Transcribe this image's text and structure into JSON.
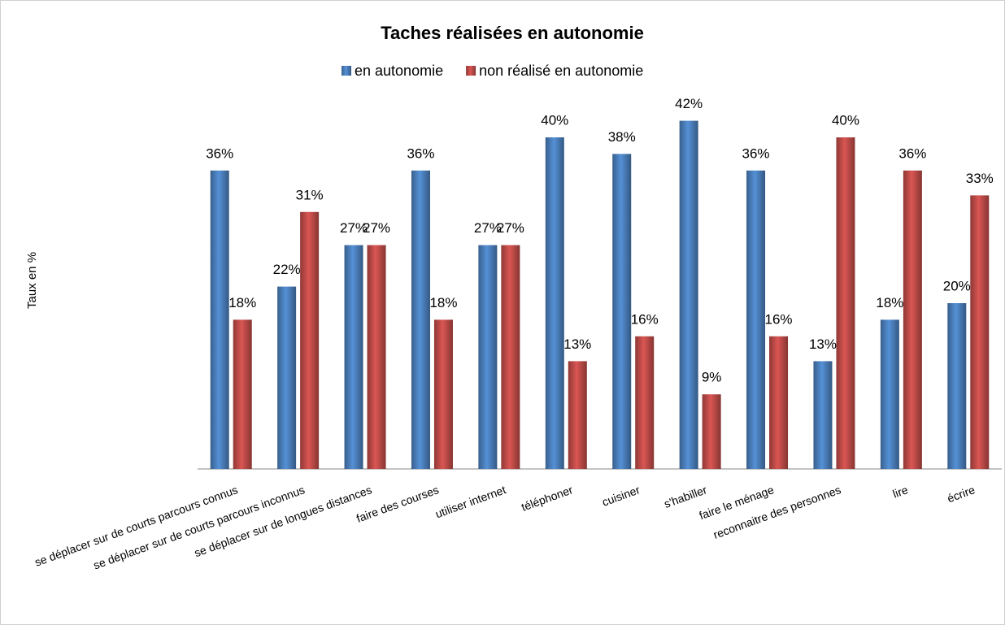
{
  "chart_data": {
    "type": "bar",
    "title": "Taches réalisées en autonomie",
    "y_label": "Taux en %",
    "categories": [
      "se déplacer sur de courts parcours connus",
      "se déplacer sur de courts parcours inconnus",
      "se déplacer sur de longues distances",
      "faire des courses",
      "utiliser internet",
      "téléphoner",
      "cuisiner",
      "s'habiller",
      "faire le ménage",
      "reconnaitre des personnes",
      "lire",
      "écrire"
    ],
    "series": [
      {
        "name": "en autonomie",
        "color": "#4a7ebb",
        "values": [
          36,
          22,
          27,
          36,
          27,
          40,
          38,
          42,
          36,
          13,
          18,
          20
        ],
        "value_labels": [
          "36%",
          "22%",
          "27%",
          "36%",
          "27%",
          "40%",
          "38%",
          "42%",
          "36%",
          "13%",
          "18%",
          "20%"
        ]
      },
      {
        "name": "non réalisé en autonomie",
        "color": "#be4b48",
        "values": [
          18,
          31,
          27,
          18,
          27,
          13,
          16,
          9,
          16,
          40,
          36,
          33
        ],
        "value_labels": [
          "18%",
          "31%",
          "27%",
          "18%",
          "27%",
          "13%",
          "16%",
          "9%",
          "16%",
          "40%",
          "36%",
          "33%"
        ]
      }
    ],
    "ylim": [
      0,
      45
    ],
    "legend": "top"
  }
}
